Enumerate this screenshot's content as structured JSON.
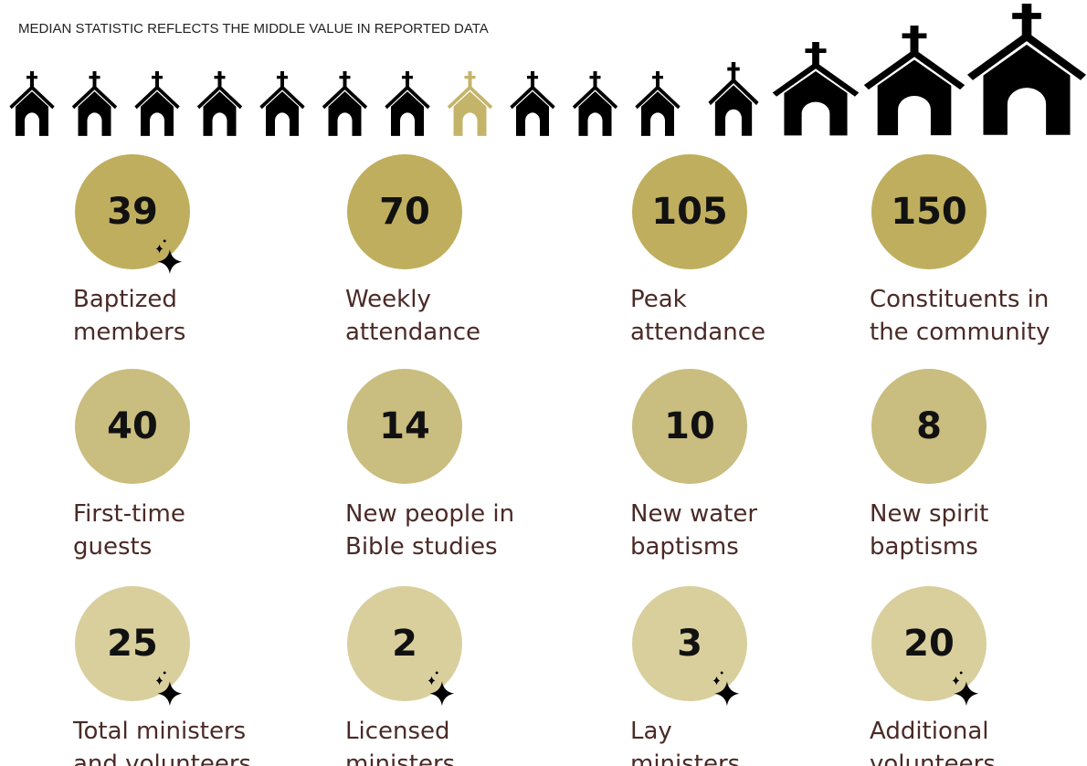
{
  "header": {
    "title": "MEDIAN STATISTIC REFLECTS THE MIDDLE VALUE IN REPORTED DATA"
  },
  "stats": [
    {
      "value": "39",
      "label": [
        "Baptized",
        "members"
      ]
    },
    {
      "value": "70",
      "label": [
        "Weekly",
        "attendance"
      ]
    },
    {
      "value": "105",
      "label": [
        "Peak",
        "attendance"
      ]
    },
    {
      "value": "150",
      "label": [
        "Constituents in",
        "the community"
      ]
    },
    {
      "value": "40",
      "label": [
        "First-time",
        "guests"
      ]
    },
    {
      "value": "14",
      "label": [
        "New people in",
        "Bible studies"
      ]
    },
    {
      "value": "10",
      "label": [
        "New water",
        "baptisms"
      ]
    },
    {
      "value": "8",
      "label": [
        "New spirit",
        "baptisms"
      ]
    },
    {
      "value": "25",
      "label": [
        "Total ministers",
        "and volunteers"
      ]
    },
    {
      "value": "2",
      "label": [
        "Licensed",
        "ministers"
      ]
    },
    {
      "value": "3",
      "label": [
        "Lay",
        "ministers"
      ]
    },
    {
      "value": "20",
      "label": [
        "Additional",
        "volunteers"
      ]
    }
  ]
}
